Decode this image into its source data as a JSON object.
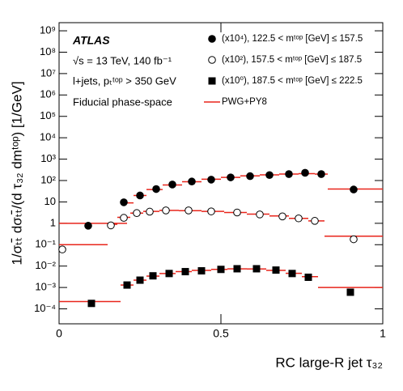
{
  "chart_data": {
    "type": "scatter",
    "y_label": "1/σₜₜ̄ dσₜₜ̄/(d τ₃₂ dmᵗᵒᵖ) [1/GeV]",
    "x_label": "RC large-R jet τ₃₂",
    "annotations": [
      "ATLAS",
      "√s = 13 TeV, 140  fb⁻¹",
      "l+jets, pₜᵗᵒᵖ > 350 GeV",
      "Fiducial phase-space"
    ],
    "log_y": true,
    "xlim": [
      0,
      1
    ],
    "xticks": [
      0,
      0.5,
      1
    ],
    "ylim": [
      2e-05,
      2400000000
    ],
    "yticks": [
      {
        "value": 0.0001,
        "label": "10⁻⁴"
      },
      {
        "value": 0.001,
        "label": "10⁻³"
      },
      {
        "value": 0.01,
        "label": "10⁻²"
      },
      {
        "value": 0.1,
        "label": "10⁻¹"
      },
      1,
      10,
      {
        "value": 100,
        "label": "10²"
      },
      {
        "value": 1000,
        "label": "10³"
      },
      {
        "value": 10000,
        "label": "10⁴"
      },
      {
        "value": 100000,
        "label": "10⁵"
      },
      {
        "value": 1000000,
        "label": "10⁶"
      },
      {
        "value": 10000000,
        "label": "10⁷"
      },
      {
        "value": 100000000,
        "label": "10⁸"
      },
      {
        "value": 1000000000,
        "label": "10⁹"
      }
    ],
    "series": [
      {
        "name": "(x10⁴), 122.5 < mᵗᵒᵖ [GeV] ≤ 157.5",
        "marker": "filled-circle",
        "color": "#000000",
        "x": [
          0.09,
          0.2,
          0.25,
          0.3,
          0.35,
          0.41,
          0.47,
          0.53,
          0.59,
          0.65,
          0.71,
          0.76,
          0.81,
          0.91
        ],
        "values": [
          0.77,
          9.6,
          20,
          40,
          65,
          90,
          110,
          140,
          160,
          180,
          200,
          230,
          200,
          38
        ]
      },
      {
        "name": "(x10²), 157.5 < mᵗᵒᵖ [GeV] ≤ 187.5",
        "marker": "open-circle",
        "color": "#000000",
        "x": [
          0.01,
          0.16,
          0.2,
          0.24,
          0.28,
          0.33,
          0.4,
          0.47,
          0.55,
          0.62,
          0.69,
          0.74,
          0.79,
          0.91
        ],
        "values": [
          0.06,
          0.8,
          1.8,
          3,
          3.5,
          4,
          4,
          3.6,
          3.2,
          2.6,
          2.1,
          1.7,
          1.3,
          0.18
        ]
      },
      {
        "name": "(x10⁰), 187.5 < mᵗᵒᵖ [GeV] ≤ 222.5",
        "marker": "filled-square",
        "color": "#000000",
        "x": [
          0.1,
          0.21,
          0.25,
          0.29,
          0.34,
          0.39,
          0.44,
          0.5,
          0.55,
          0.61,
          0.67,
          0.72,
          0.77,
          0.9
        ],
        "values": [
          0.00018,
          0.0013,
          0.0022,
          0.0035,
          0.0045,
          0.0055,
          0.006,
          0.007,
          0.0075,
          0.0075,
          0.0065,
          0.0045,
          0.003,
          0.0006
        ]
      }
    ],
    "model": {
      "name": "PWG+PY8",
      "color": "#e8251b",
      "pieces": [
        {
          "bins": [
            0,
            0.21,
            0.23,
            0.27,
            0.32,
            0.38,
            0.44,
            0.5,
            0.56,
            0.62,
            0.68,
            0.74,
            0.79,
            0.83,
            1
          ],
          "values": [
            1,
            9,
            20,
            38,
            62,
            88,
            115,
            140,
            165,
            185,
            200,
            210,
            200,
            40
          ]
        },
        {
          "bins": [
            0,
            0.15,
            0.18,
            0.22,
            0.26,
            0.31,
            0.37,
            0.44,
            0.51,
            0.58,
            0.65,
            0.71,
            0.77,
            0.82,
            1
          ],
          "values": [
            0.1,
            0.9,
            1.9,
            3,
            3.6,
            4,
            3.9,
            3.6,
            3.2,
            2.7,
            2.2,
            1.7,
            1.3,
            0.25
          ]
        },
        {
          "bins": [
            0,
            0.19,
            0.23,
            0.27,
            0.31,
            0.36,
            0.41,
            0.47,
            0.52,
            0.58,
            0.64,
            0.7,
            0.75,
            0.8,
            1
          ],
          "values": [
            0.00022,
            0.0013,
            0.0022,
            0.0034,
            0.0045,
            0.0055,
            0.0063,
            0.007,
            0.0074,
            0.0073,
            0.0063,
            0.0046,
            0.0032,
            0.001
          ]
        }
      ]
    }
  }
}
